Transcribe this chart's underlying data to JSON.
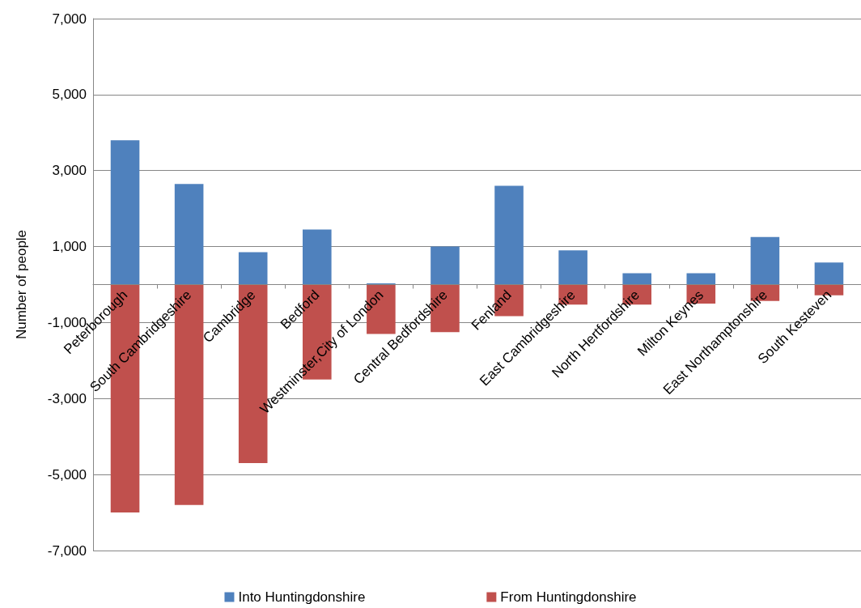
{
  "chart_data": {
    "type": "bar",
    "stacked": true,
    "ylabel": "Number of people",
    "categories": [
      "Peterborough",
      "South Cambridgeshire",
      "Cambridge",
      "Bedford",
      "Westminster,City of London",
      "Central Bedfordshire",
      "Fenland",
      "East Cambridgeshire",
      "North Hertfordshire",
      "Milton Keynes",
      "East Northamptonshire",
      "South Kesteven"
    ],
    "series": [
      {
        "name": "Into Huntingdonshire",
        "color": "#4f81bd",
        "values": [
          3800,
          2650,
          850,
          1450,
          30,
          1000,
          2600,
          900,
          300,
          300,
          1250,
          580
        ]
      },
      {
        "name": "From Huntingdonshire",
        "color": "#c0504d",
        "values": [
          -6000,
          -5800,
          -4700,
          -2500,
          -1300,
          -1250,
          -830,
          -530,
          -530,
          -500,
          -430,
          -280
        ]
      }
    ],
    "ylim": [
      -7000,
      7000
    ],
    "yticks": [
      {
        "value": -7000,
        "label": "-7,000"
      },
      {
        "value": -5000,
        "label": "-5,000"
      },
      {
        "value": -3000,
        "label": "-3,000"
      },
      {
        "value": -1000,
        "label": "-1,000"
      },
      {
        "value": 1000,
        "label": "1,000"
      },
      {
        "value": 3000,
        "label": "3,000"
      },
      {
        "value": 5000,
        "label": "5,000"
      },
      {
        "value": 7000,
        "label": "7,000"
      }
    ],
    "grid": "y",
    "legend": "bottom"
  }
}
